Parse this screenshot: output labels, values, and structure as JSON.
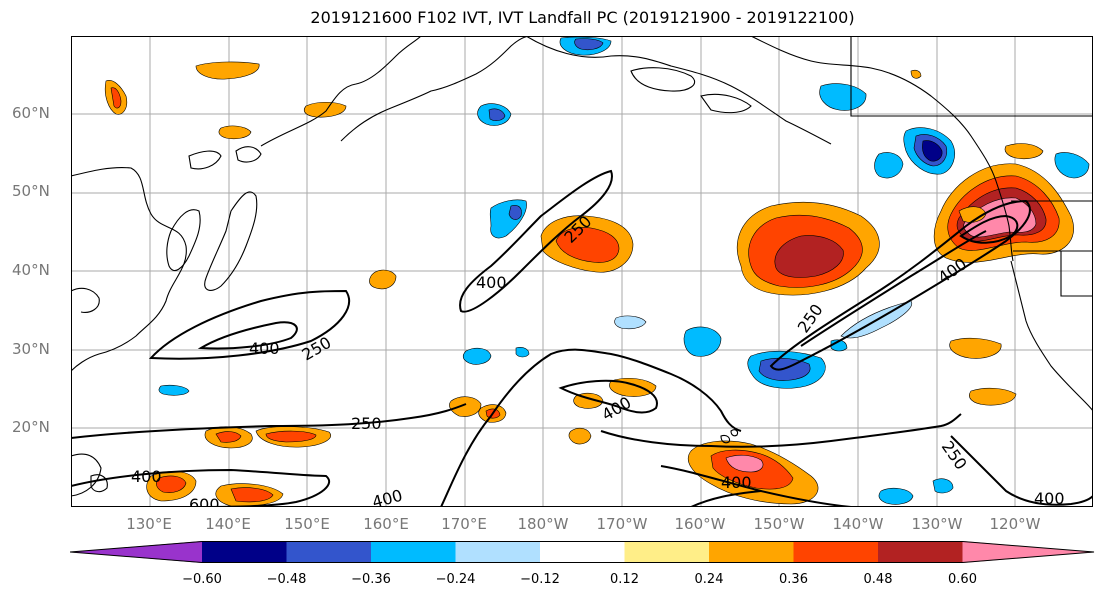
{
  "title": "2019121600 F102 IVT, IVT Landfall PC (2019121900 - 2019122100)",
  "lat_labels": [
    "60°N",
    "50°N",
    "40°N",
    "30°N",
    "20°N"
  ],
  "lon_labels": [
    "130°E",
    "140°E",
    "150°E",
    "160°E",
    "170°E",
    "180°W",
    "170°W",
    "160°W",
    "150°W",
    "140°W",
    "130°W",
    "120°W"
  ],
  "contour_labels": [
    "400",
    "250",
    "250",
    "400",
    "250",
    "400",
    "250",
    "400",
    "600",
    "400",
    "400",
    "250",
    "400",
    "400",
    "250",
    "250"
  ],
  "colorbar": {
    "ticks": [
      "−0.60",
      "−0.48",
      "−0.36",
      "−0.24",
      "−0.12",
      "0.12",
      "0.24",
      "0.36",
      "0.48",
      "0.60"
    ],
    "colors": [
      "#9933cc",
      "#000088",
      "#3355cc",
      "#00bbff",
      "#b0e0ff",
      "#ffffff",
      "#ffee88",
      "#ffa500",
      "#ff4400",
      "#b22222",
      "#ff88aa"
    ]
  }
}
